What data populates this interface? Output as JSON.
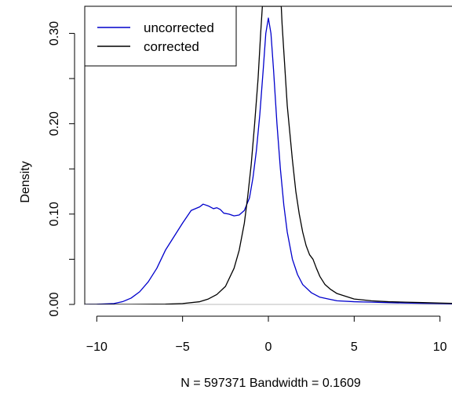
{
  "chart_data": {
    "type": "line",
    "title": "",
    "xlabel": "N = 597371   Bandwidth = 0.1609",
    "ylabel": "Density",
    "xlim": [
      -10.7,
      10.7
    ],
    "ylim": [
      0,
      0.33
    ],
    "x_ticks": [
      -10,
      -5,
      0,
      5,
      10
    ],
    "x_tick_labels": [
      "−10",
      "−5",
      "0",
      "5",
      "10"
    ],
    "y_ticks": [
      0.0,
      0.1,
      0.2,
      0.3
    ],
    "y_tick_labels": [
      "0.00",
      "0.10",
      "0.20",
      "0.30"
    ],
    "y_minor_ticks": [
      0.05,
      0.15,
      0.25
    ],
    "baseline": 0,
    "grid": false,
    "legend_position": "top-left",
    "series": [
      {
        "name": "uncorrected",
        "color": "#0000cc",
        "points": [
          [
            -10.7,
            0.0
          ],
          [
            -10,
            0.0002
          ],
          [
            -9,
            0.001
          ],
          [
            -8.5,
            0.003
          ],
          [
            -8,
            0.007
          ],
          [
            -7.5,
            0.014
          ],
          [
            -7,
            0.025
          ],
          [
            -6.5,
            0.04
          ],
          [
            -6,
            0.06
          ],
          [
            -5.5,
            0.075
          ],
          [
            -5,
            0.09
          ],
          [
            -4.5,
            0.104
          ],
          [
            -4,
            0.108
          ],
          [
            -3.8,
            0.111
          ],
          [
            -3.5,
            0.109
          ],
          [
            -3.2,
            0.106
          ],
          [
            -3,
            0.107
          ],
          [
            -2.8,
            0.105
          ],
          [
            -2.6,
            0.101
          ],
          [
            -2.3,
            0.1
          ],
          [
            -2,
            0.098
          ],
          [
            -1.7,
            0.099
          ],
          [
            -1.4,
            0.104
          ],
          [
            -1.1,
            0.118
          ],
          [
            -0.9,
            0.14
          ],
          [
            -0.7,
            0.17
          ],
          [
            -0.5,
            0.21
          ],
          [
            -0.3,
            0.26
          ],
          [
            -0.15,
            0.3
          ],
          [
            0,
            0.317
          ],
          [
            0.15,
            0.3
          ],
          [
            0.3,
            0.26
          ],
          [
            0.5,
            0.2
          ],
          [
            0.7,
            0.15
          ],
          [
            0.9,
            0.11
          ],
          [
            1.1,
            0.08
          ],
          [
            1.4,
            0.05
          ],
          [
            1.7,
            0.033
          ],
          [
            2,
            0.022
          ],
          [
            2.5,
            0.013
          ],
          [
            3,
            0.008
          ],
          [
            3.5,
            0.006
          ],
          [
            4,
            0.004
          ],
          [
            5,
            0.003
          ],
          [
            6,
            0.0025
          ],
          [
            7,
            0.002
          ],
          [
            8,
            0.0015
          ],
          [
            9,
            0.0012
          ],
          [
            10,
            0.001
          ],
          [
            10.7,
            0.0008
          ]
        ]
      },
      {
        "name": "corrected",
        "color": "#000000",
        "points": [
          [
            -10.7,
            0.0
          ],
          [
            -8,
            0.0
          ],
          [
            -6,
            0.0003
          ],
          [
            -5,
            0.001
          ],
          [
            -4,
            0.003
          ],
          [
            -3.5,
            0.006
          ],
          [
            -3,
            0.011
          ],
          [
            -2.5,
            0.02
          ],
          [
            -2,
            0.04
          ],
          [
            -1.7,
            0.06
          ],
          [
            -1.4,
            0.09
          ],
          [
            -1.2,
            0.12
          ],
          [
            -1.0,
            0.155
          ],
          [
            -0.8,
            0.2
          ],
          [
            -0.6,
            0.25
          ],
          [
            -0.45,
            0.3
          ],
          [
            -0.35,
            0.33
          ],
          [
            0.75,
            0.33
          ],
          [
            0.8,
            0.31
          ],
          [
            0.9,
            0.28
          ],
          [
            1.0,
            0.25
          ],
          [
            1.1,
            0.22
          ],
          [
            1.25,
            0.19
          ],
          [
            1.4,
            0.16
          ],
          [
            1.6,
            0.125
          ],
          [
            1.8,
            0.1
          ],
          [
            2.0,
            0.08
          ],
          [
            2.2,
            0.065
          ],
          [
            2.4,
            0.055
          ],
          [
            2.6,
            0.05
          ],
          [
            2.8,
            0.04
          ],
          [
            3.0,
            0.031
          ],
          [
            3.3,
            0.022
          ],
          [
            3.6,
            0.017
          ],
          [
            4.0,
            0.012
          ],
          [
            4.5,
            0.009
          ],
          [
            5.0,
            0.006
          ],
          [
            6.0,
            0.004
          ],
          [
            7.0,
            0.003
          ],
          [
            8.0,
            0.0025
          ],
          [
            9.0,
            0.002
          ],
          [
            10.0,
            0.0015
          ],
          [
            10.7,
            0.0012
          ]
        ]
      }
    ]
  }
}
